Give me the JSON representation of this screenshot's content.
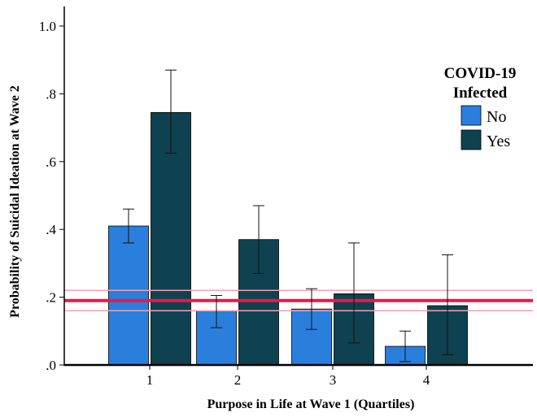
{
  "chart_data": {
    "type": "bar",
    "xlabel": "Purpose in Life at Wave 1 (Quartiles)",
    "ylabel": "Probability of Suicidal Ideation at Wave 2",
    "ylim": [
      0,
      1.05
    ],
    "yticks": [
      0,
      0.2,
      0.4,
      0.6,
      0.8,
      1.0
    ],
    "ytick_labels": [
      ".0",
      ".2",
      ".4",
      ".6",
      ".8",
      "1.0"
    ],
    "categories": [
      "1",
      "2",
      "3",
      "4"
    ],
    "legend": {
      "title_line1": "COVID-19",
      "title_line2": "Infected",
      "placement": "right"
    },
    "series": [
      {
        "name": "No",
        "color": "#2a7fdc",
        "values": [
          0.41,
          0.16,
          0.165,
          0.055
        ],
        "ci_low": [
          0.36,
          0.11,
          0.105,
          0.01
        ],
        "ci_high": [
          0.46,
          0.205,
          0.225,
          0.1
        ]
      },
      {
        "name": "Yes",
        "color": "#0e4250",
        "values": [
          0.745,
          0.37,
          0.21,
          0.175
        ],
        "ci_low": [
          0.625,
          0.27,
          0.065,
          0.03
        ],
        "ci_high": [
          0.87,
          0.47,
          0.36,
          0.325
        ]
      }
    ],
    "reference_line": {
      "value": 0.19,
      "band_low": 0.16,
      "band_high": 0.22,
      "color": "#e8194a",
      "band_color": "#f2a2b3"
    },
    "grid": false
  }
}
